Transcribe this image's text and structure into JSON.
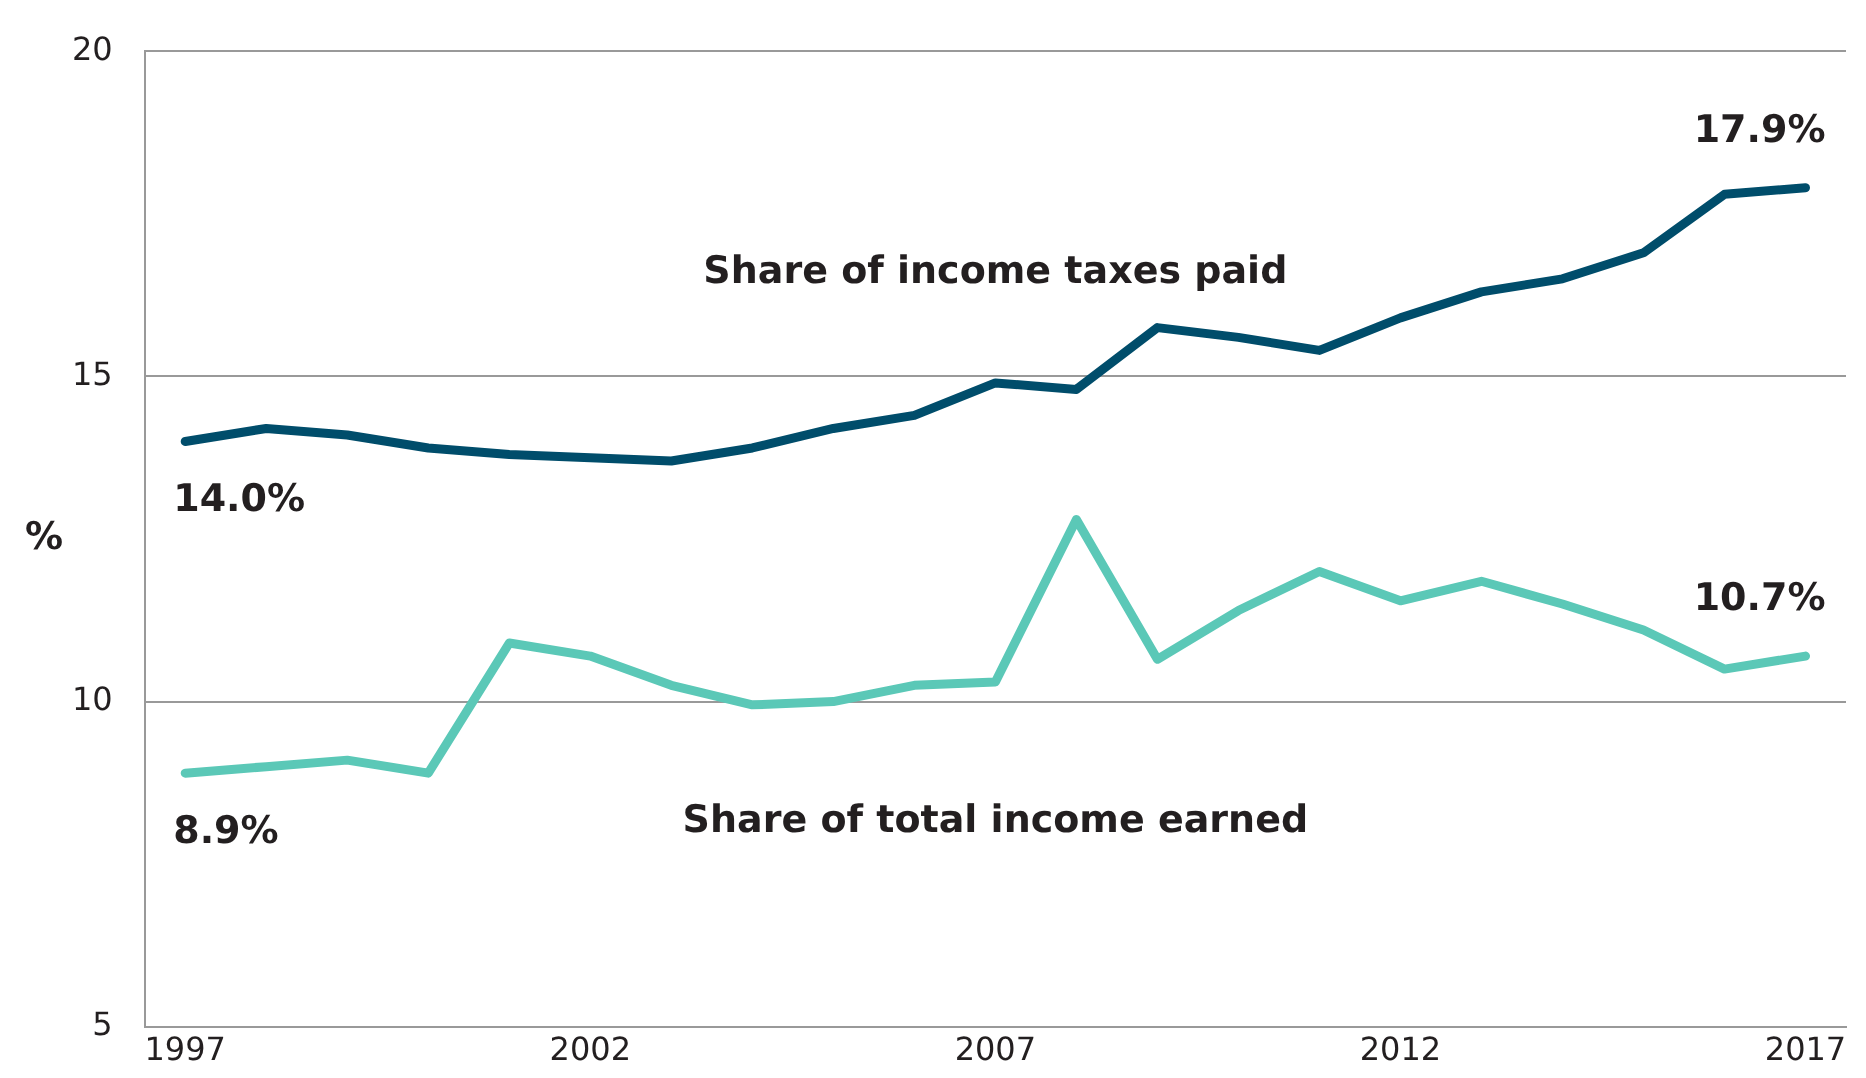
{
  "chart_data": {
    "type": "line",
    "ylabel": "%",
    "x": [
      1997,
      1998,
      1999,
      2000,
      2001,
      2002,
      2003,
      2004,
      2005,
      2006,
      2007,
      2008,
      2009,
      2010,
      2011,
      2012,
      2013,
      2014,
      2015,
      2016,
      2017
    ],
    "series": [
      {
        "name": "Share of income taxes paid",
        "color": "#004d6b",
        "values": [
          14.0,
          14.2,
          14.1,
          13.9,
          13.8,
          13.75,
          13.7,
          13.9,
          14.2,
          14.4,
          14.9,
          14.8,
          15.75,
          15.6,
          15.4,
          15.9,
          16.3,
          16.5,
          16.9,
          17.8,
          17.9
        ],
        "value_labels": [
          "14.0%",
          null,
          null,
          null,
          null,
          null,
          null,
          null,
          null,
          null,
          null,
          null,
          null,
          null,
          null,
          null,
          null,
          null,
          null,
          null,
          "17.9%"
        ]
      },
      {
        "name": "Share of total income earned",
        "color": "#5bc8b7",
        "values": [
          8.9,
          9.0,
          9.1,
          8.9,
          10.9,
          10.7,
          10.25,
          9.95,
          10.0,
          10.25,
          10.3,
          12.8,
          10.65,
          11.4,
          12.0,
          11.55,
          11.85,
          11.5,
          11.1,
          10.5,
          10.7
        ],
        "value_labels": [
          "8.9%",
          null,
          null,
          null,
          null,
          null,
          null,
          null,
          null,
          null,
          null,
          null,
          null,
          null,
          null,
          null,
          null,
          null,
          null,
          null,
          "10.7%"
        ]
      }
    ],
    "xlim": [
      1996.5,
      2017.5
    ],
    "xticks": [
      1997,
      2002,
      2007,
      2012,
      2017
    ],
    "ylim": [
      5,
      20
    ],
    "yticks": [
      5,
      10,
      15,
      20
    ],
    "grid": "y",
    "legend": false,
    "marker": "none",
    "line_style": "solid"
  }
}
